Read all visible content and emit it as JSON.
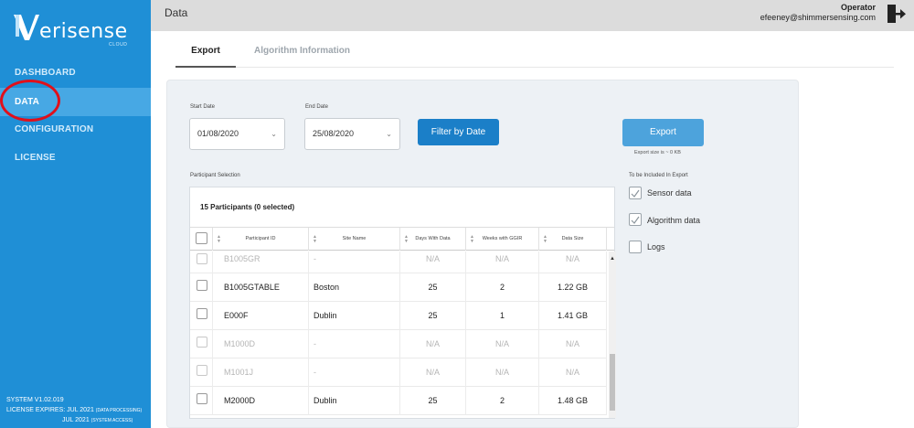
{
  "sidebar": {
    "logo_text": "erisense",
    "logo_sub": "CLOUD",
    "items": [
      {
        "label": "DASHBOARD"
      },
      {
        "label": "DATA"
      },
      {
        "label": "CONFIGURATION"
      },
      {
        "label": "LICENSE"
      }
    ],
    "system_version": "SYSTEM V1.02.019",
    "license_line1": "LICENSE EXPIRES: JUL 2021",
    "license_line1_note": "(DATA PROCESSING)",
    "license_line2": "JUL 2021",
    "license_line2_note": "(SYSTEM ACCESS)"
  },
  "header": {
    "title": "Data",
    "role": "Operator",
    "email": "efeeney@shimmersensing.com"
  },
  "tabs": [
    {
      "label": "Export"
    },
    {
      "label": "Algorithm Information"
    }
  ],
  "filters": {
    "start_label": "Start Date",
    "start_value": "01/08/2020",
    "end_label": "End Date",
    "end_value": "25/08/2020",
    "filter_button": "Filter by Date",
    "export_button": "Export",
    "export_size": "Export size is ~ 0 KB"
  },
  "participants": {
    "section_label": "Participant Selection",
    "title": "15 Participants (0 selected)",
    "columns": [
      "Participant ID",
      "Site Name",
      "Days With Data",
      "Weeks with GGIR",
      "Data Size"
    ],
    "rows": [
      {
        "id": "B1005GR",
        "site": "-",
        "days": "N/A",
        "weeks": "N/A",
        "size": "N/A"
      },
      {
        "id": "B1005GTABLE",
        "site": "Boston",
        "days": "25",
        "weeks": "2",
        "size": "1.22 GB"
      },
      {
        "id": "E000F",
        "site": "Dublin",
        "days": "25",
        "weeks": "1",
        "size": "1.41 GB"
      },
      {
        "id": "M1000D",
        "site": "-",
        "days": "N/A",
        "weeks": "N/A",
        "size": "N/A"
      },
      {
        "id": "M1001J",
        "site": "-",
        "days": "N/A",
        "weeks": "N/A",
        "size": "N/A"
      },
      {
        "id": "M2000D",
        "site": "Dublin",
        "days": "25",
        "weeks": "2",
        "size": "1.48 GB"
      }
    ]
  },
  "include": {
    "label": "To be Included In Export",
    "items": [
      {
        "label": "Sensor data",
        "checked": true
      },
      {
        "label": "Algorithm data",
        "checked": true
      },
      {
        "label": "Logs",
        "checked": false
      }
    ]
  },
  "colors": {
    "sidebar": "#1f8fd6",
    "active_nav": "#47a8e4",
    "primary_button": "#1b7fc8",
    "export_button": "#4da3dc",
    "highlight_circle": "#e0101b"
  }
}
